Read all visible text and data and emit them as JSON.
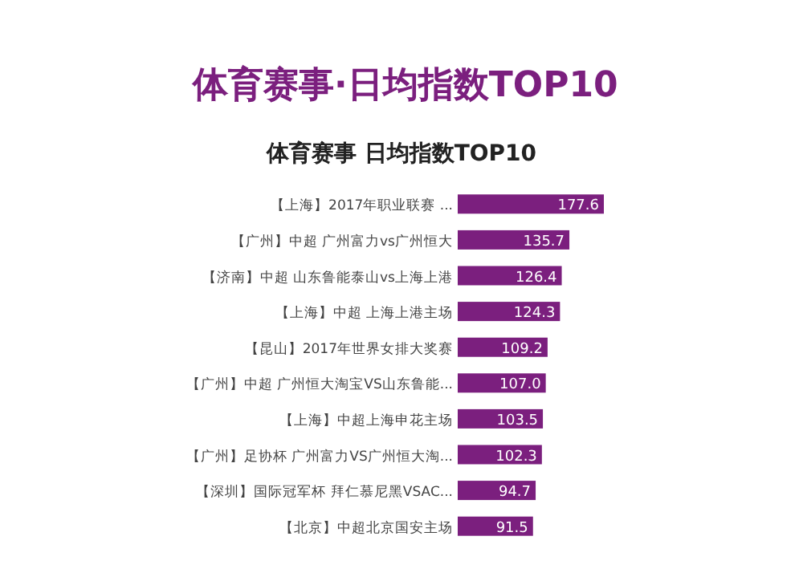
{
  "chart_data": {
    "type": "bar",
    "orientation": "horizontal",
    "title": "体育赛事·日均指数TOP10",
    "subtitle": "体育赛事  日均指数TOP10",
    "categories": [
      "【上海】2017年职业联赛 ...",
      "【广州】中超 广州富力vs广州恒大",
      "【济南】中超 山东鲁能泰山vs上海上港",
      "【上海】中超 上海上港主场",
      "【昆山】2017年世界女排大奖赛",
      "【广州】中超 广州恒大淘宝VS山东鲁能...",
      "【上海】中超上海申花主场",
      "【广州】足协杯 广州富力VS广州恒大淘...",
      "【深圳】国际冠军杯 拜仁慕尼黑VSAC...",
      "【北京】中超北京国安主场"
    ],
    "values": [
      177.6,
      135.7,
      126.4,
      124.3,
      109.2,
      107.0,
      103.5,
      102.3,
      94.7,
      91.5
    ],
    "value_labels": [
      "177.6",
      "135.7",
      "126.4",
      "124.3",
      "109.2",
      "107.0",
      "103.5",
      "102.3",
      "94.7",
      "91.5"
    ],
    "color": "#7b1f7e"
  }
}
